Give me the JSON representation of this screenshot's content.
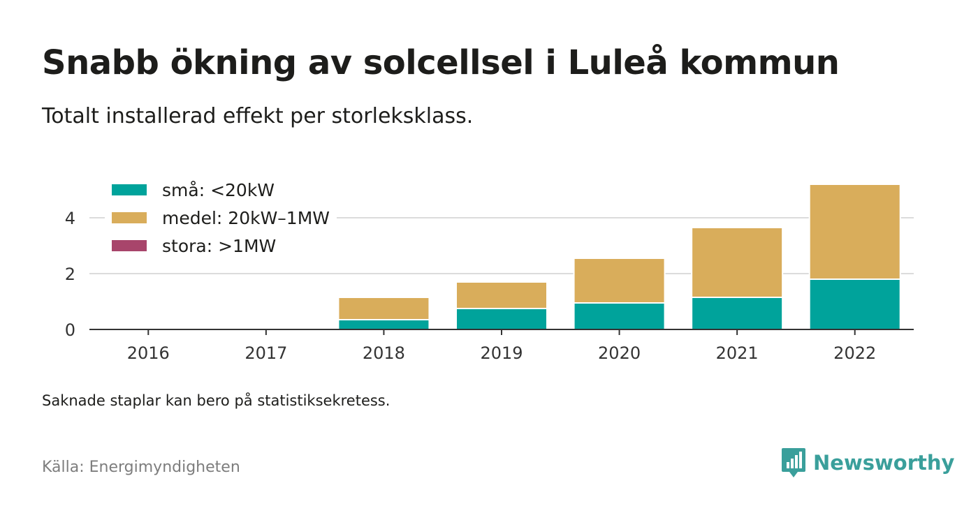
{
  "title": "Snabb ökning av solcellsel i Luleå kommun",
  "subtitle": "Totalt installerad effekt per storleksklass.",
  "note": "Saknade staplar kan bero på statistiksekretess.",
  "source": "Källa: Energimyndigheten",
  "brand": {
    "name": "Newsworthy",
    "icon": "newsworthy-logo-icon",
    "color": "#3a9f9b"
  },
  "chart_data": {
    "type": "bar",
    "stacked": true,
    "categories": [
      "2016",
      "2017",
      "2018",
      "2019",
      "2020",
      "2021",
      "2022"
    ],
    "series": [
      {
        "name": "små: <20kW",
        "color": "#00a39b",
        "values": [
          0,
          0,
          0.35,
          0.75,
          0.95,
          1.15,
          1.8
        ]
      },
      {
        "name": "medel: 20kW–1MW",
        "color": "#d9ad5b",
        "values": [
          0,
          0,
          0.8,
          0.95,
          1.6,
          2.5,
          3.4
        ]
      },
      {
        "name": "stora: >1MW",
        "color": "#a8456b",
        "values": [
          0,
          0,
          0,
          0,
          0,
          0,
          0
        ]
      }
    ],
    "y_ticks": [
      "0",
      "2",
      "4"
    ],
    "ylim": [
      0,
      5.2
    ],
    "xlabel": "",
    "ylabel": "",
    "grid": true,
    "legend": "top-left"
  }
}
